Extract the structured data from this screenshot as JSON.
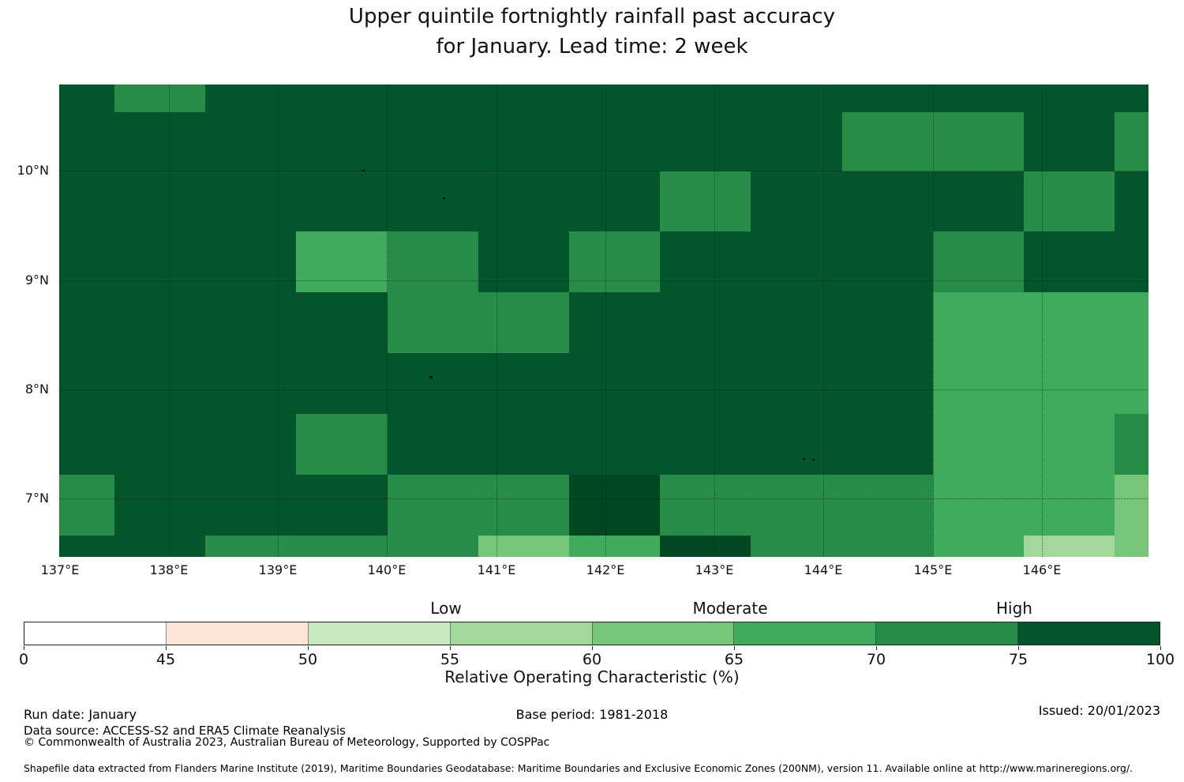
{
  "title": {
    "line1": "Upper quintile fortnightly rainfall past accuracy",
    "line2": "for January. Lead time: 2 week"
  },
  "footer": {
    "run_date": "Run date: January",
    "base_period": "Base period: 1981-2018",
    "issued": "Issued: 20/01/2023",
    "data_source": "Data source: ACCESS-S2 and ERA5 Climate Reanalysis",
    "copyright": "© Commonwealth of Australia 2023, Australian Bureau of Meteorology, Supported by COSPPac",
    "shapefile": "Shapefile data extracted from Flanders Marine Institute (2019), Maritime Boundaries Geodatabase: Maritime Boundaries and Exclusive Economic Zones (200NM), version 11. Available online at http://www.marineregions.org/."
  },
  "chart_data": {
    "type": "heatmap",
    "title": "Upper quintile fortnightly rainfall past accuracy for January. Lead time: 2 week",
    "x_tick_labels": [
      "137°E",
      "138°E",
      "139°E",
      "140°E",
      "141°E",
      "142°E",
      "143°E",
      "144°E",
      "145°E",
      "146°E"
    ],
    "y_tick_labels": [
      "10°N",
      "9°N",
      "8°N",
      "7°N"
    ],
    "map_extent": {
      "lon": [
        137.0,
        146.9
      ],
      "lat": [
        6.47,
        10.79
      ]
    },
    "cell_size_deg": {
      "lon": 0.833,
      "lat": 0.556
    },
    "graticule_lons": [
      138,
      139,
      140,
      141,
      142,
      143,
      144,
      145,
      146
    ],
    "graticule_lats": [
      7,
      8,
      9,
      10
    ],
    "colorbar": {
      "label": "Relative Operating Characteristic (%)",
      "ticks": [
        0,
        45,
        50,
        55,
        60,
        65,
        70,
        75,
        100
      ],
      "segment_colors": [
        "#ffffff",
        "#fbe5d7",
        "#c9e8c2",
        "#a3d89c",
        "#76c578",
        "#40aa5d",
        "#268c48",
        "#03562b"
      ],
      "categories": [
        "Low",
        "Moderate",
        "High"
      ],
      "category_tick_values": [
        55,
        65,
        75
      ]
    },
    "bucket_value_ranges": [
      "0-45",
      "45-50",
      "50-55",
      "55-60",
      "60-65",
      "65-70",
      "70-75",
      "75-100"
    ],
    "grid_rows_north_to_south": true,
    "grid_buckets": [
      [
        7,
        6,
        7,
        7,
        7,
        7,
        7,
        7,
        7,
        7,
        7,
        7,
        7
      ],
      [
        7,
        7,
        7,
        7,
        7,
        7,
        7,
        7,
        7,
        6,
        6,
        7,
        6
      ],
      [
        7,
        7,
        7,
        7,
        7,
        7,
        7,
        6,
        7,
        7,
        7,
        6,
        7
      ],
      [
        7,
        7,
        7,
        5,
        6,
        7,
        6,
        7,
        7,
        7,
        6,
        7,
        7
      ],
      [
        7,
        7,
        7,
        7,
        6,
        6,
        7,
        7,
        7,
        7,
        5,
        5,
        5
      ],
      [
        7,
        7,
        7,
        7,
        7,
        7,
        7,
        7,
        7,
        7,
        5,
        5,
        5
      ],
      [
        7,
        7,
        7,
        6,
        7,
        7,
        7,
        7,
        7,
        7,
        5,
        5,
        6
      ],
      [
        6,
        7,
        7,
        7,
        6,
        6,
        7,
        6,
        6,
        6,
        5,
        5,
        4
      ],
      [
        7,
        7,
        6,
        6,
        6,
        4,
        5,
        7,
        6,
        6,
        5,
        3,
        4
      ]
    ],
    "deep_shade_cells": [
      [
        7,
        6
      ],
      [
        8,
        7
      ]
    ],
    "deep_shade_color": "#014721"
  }
}
